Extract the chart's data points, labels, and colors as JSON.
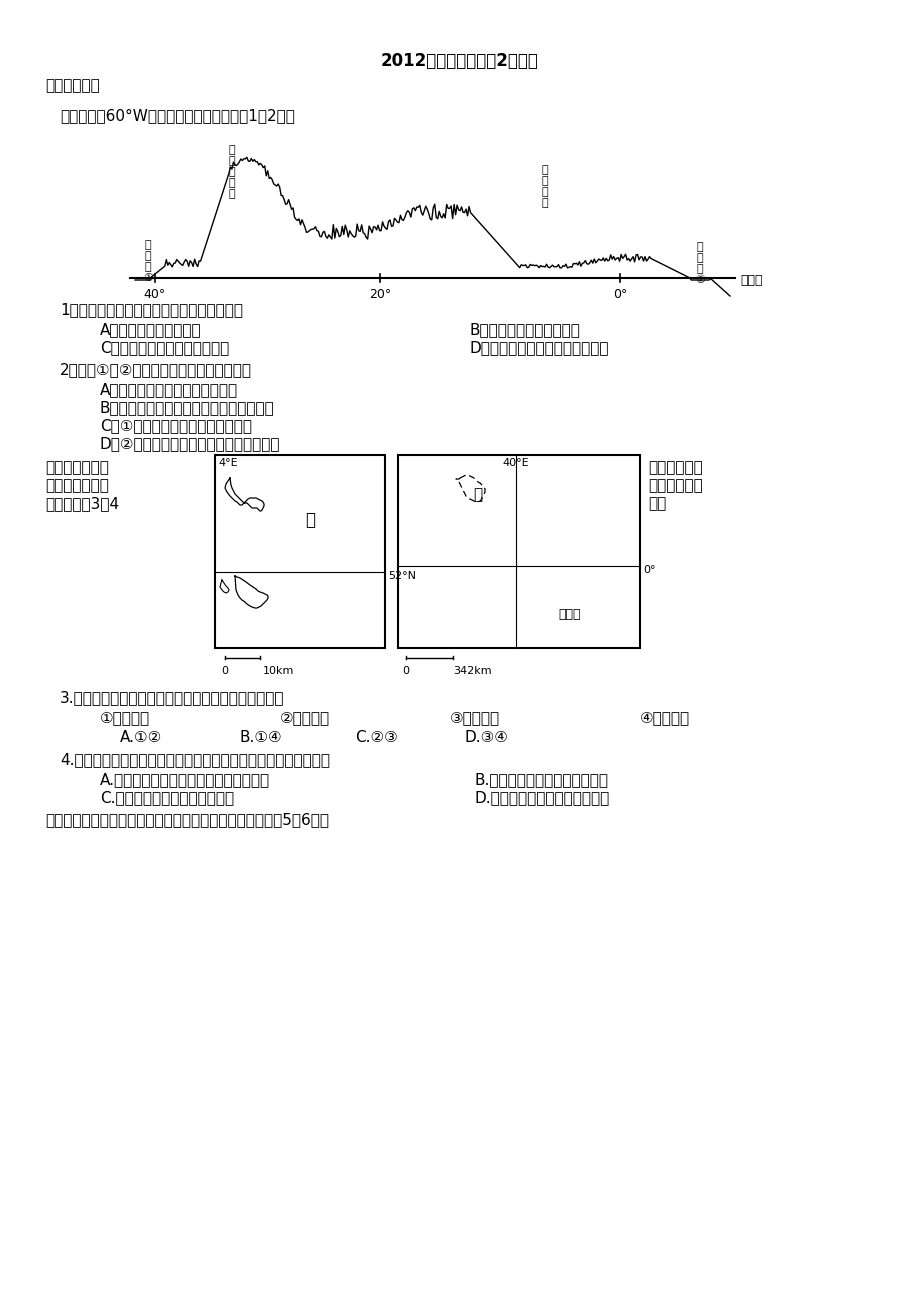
{
  "title": "2012年高考模拟题（2）地理",
  "section1": "一、选择题：",
  "intro1": "读某大洲沿60°W的地形剖面示意图，完成1～2题。",
  "q1": "1．关于图示地区地形特征的描述，正确的是",
  "q1a": "A．平原与高原相间分布",
  "q1b": "B．地形单一，平均海拔高",
  "q1c": "C．地势起伏大，山地丘陵为主",
  "q1d": "D．中间高两边低，河流呈放射状",
  "q2": "2．关于①、②地地质条件的说法，正确的是",
  "q2a": "A．均位于板块交界处，地壳活跃",
  "q2b": "B．均不位于板块交界处，地质条件较稳定",
  "q2c": "C．①位于板块交界处，多火山地震",
  "q2d": "D．②位于板块交界处，多岩浆活动和地热",
  "map_intro1": "下图示意的甲、",
  "map_intro2": "传统、新兴的鲜",
  "map_intro3": "读图，完成3～4",
  "map_right1": "乙两国分别为",
  "map_right2": "切花生产国。",
  "map_right3": "题。",
  "q3": "3.与甲国相比，乙国发展鲜切花生产的优势自然条件是",
  "q3_o1": "①热量丰富",
  "q3_o2": "②光照充足",
  "q3_o3": "③地形平坦",
  "q3_o4": "④水源丰富",
  "q3_ca": "A.①②",
  "q3_cb": "B.①④",
  "q3_cc": "C.②③",
  "q3_cd": "D.③④",
  "q4": "4.与乙国相比，甲国维持其在世界鲜切花市场竞争力的优势条件是",
  "q4a": "A.专业化、规模化生产，鲜切花价格较低",
  "q4b": "B.土地丰富，天然花卉品种较多",
  "q4c": "C.培植历史久，劳动力成本较低",
  "q4d": "D.技术含量高，鲜切花质量较优",
  "q5_intro": "下图反映我国某地农业土地利用类型的变化情况，据此回答5～6题。",
  "bg_color": "#ffffff",
  "text_color": "#000000"
}
